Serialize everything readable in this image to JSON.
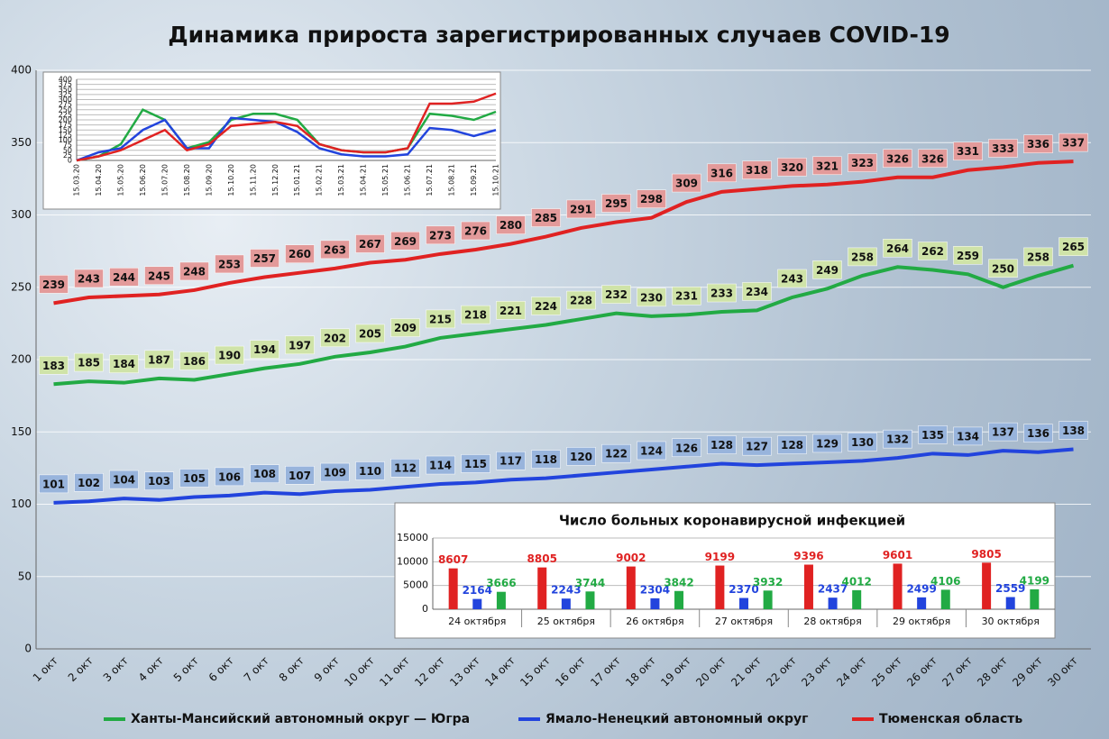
{
  "chart_data": [
    {
      "type": "line",
      "title": "Динамика прироста зарегистрированных случаев COVID-19",
      "categories": [
        "1 окт",
        "2 окт",
        "3 окт",
        "4 окт",
        "5 окт",
        "6 окт",
        "7 окт",
        "8 окт",
        "9 окт",
        "10 окт",
        "11 окт",
        "12 окт",
        "13 окт",
        "14 окт",
        "15 окт",
        "16 окт",
        "17 окт",
        "18 окт",
        "19 окт",
        "20 окт",
        "21 окт",
        "22 окт",
        "23 окт",
        "24 окт",
        "25 окт",
        "26 окт",
        "27 окт",
        "28 окт",
        "29 окт",
        "30 окт"
      ],
      "series": [
        {
          "name": "Ханты-Мансийский автономный округ — Югра",
          "color": "#22aa44",
          "label_fill": "#cfe3a8",
          "values": [
            183,
            185,
            184,
            187,
            186,
            190,
            194,
            197,
            202,
            205,
            209,
            215,
            218,
            221,
            224,
            228,
            232,
            230,
            231,
            233,
            234,
            243,
            249,
            258,
            264,
            262,
            259,
            250,
            258,
            265
          ]
        },
        {
          "name": "Ямало-Ненецкий автономный округ",
          "color": "#2244dd",
          "label_fill": "#98b4dc",
          "values": [
            101,
            102,
            104,
            103,
            105,
            106,
            108,
            107,
            109,
            110,
            112,
            114,
            115,
            117,
            118,
            120,
            122,
            124,
            126,
            128,
            127,
            128,
            129,
            130,
            132,
            135,
            134,
            137,
            136,
            138
          ]
        },
        {
          "name": "Тюменская область",
          "color": "#e02222",
          "label_fill": "#e39a9a",
          "values": [
            239,
            243,
            244,
            245,
            248,
            253,
            257,
            260,
            263,
            267,
            269,
            273,
            276,
            280,
            285,
            291,
            295,
            298,
            309,
            316,
            318,
            320,
            321,
            323,
            326,
            326,
            331,
            333,
            336,
            337
          ]
        }
      ],
      "ylim": [
        0,
        400
      ],
      "yticks": [
        0,
        50,
        100,
        150,
        200,
        250,
        300,
        350,
        400
      ],
      "grid": true,
      "data_labels": true,
      "legend": "bottom"
    },
    {
      "type": "line",
      "categories": [
        "15.03.20",
        "15.04.20",
        "15.05.20",
        "15.06.20",
        "15.07.20",
        "15.08.20",
        "15.09.20",
        "15.10.20",
        "15.11.20",
        "15.12.20",
        "15.01.21",
        "15.02.21",
        "15.03.21",
        "15.04.21",
        "15.05.21",
        "15.06.21",
        "15.07.21",
        "15.08.21",
        "15.09.21",
        "15.10.21"
      ],
      "series": [
        {
          "color": "#22aa44",
          "values": [
            0,
            20,
            80,
            250,
            200,
            60,
            90,
            200,
            230,
            230,
            200,
            80,
            50,
            40,
            40,
            60,
            230,
            220,
            200,
            240
          ]
        },
        {
          "color": "#2244dd",
          "values": [
            0,
            40,
            60,
            150,
            200,
            60,
            60,
            210,
            200,
            190,
            140,
            60,
            30,
            20,
            20,
            30,
            160,
            150,
            120,
            150
          ]
        },
        {
          "color": "#e02222",
          "values": [
            0,
            20,
            50,
            100,
            150,
            50,
            80,
            170,
            180,
            190,
            170,
            80,
            50,
            40,
            40,
            60,
            280,
            280,
            290,
            330
          ]
        }
      ],
      "ylim": [
        0,
        400
      ],
      "yticks": [
        0,
        25,
        50,
        75,
        100,
        125,
        150,
        175,
        200,
        225,
        250,
        275,
        300,
        325,
        350,
        375,
        400
      ],
      "grid": true
    },
    {
      "type": "bar",
      "title": "Число больных коронавирусной инфекцией",
      "categories": [
        "24 октября",
        "25 октября",
        "26 октября",
        "27 октября",
        "28 октября",
        "29 октября",
        "30 октября"
      ],
      "series": [
        {
          "color": "#e02222",
          "values": [
            8607,
            8805,
            9002,
            9199,
            9396,
            9601,
            9805
          ]
        },
        {
          "color": "#2244dd",
          "values": [
            2164,
            2243,
            2304,
            2370,
            2437,
            2499,
            2559
          ]
        },
        {
          "color": "#22aa44",
          "values": [
            3666,
            3744,
            3842,
            3932,
            4012,
            4106,
            4199
          ]
        }
      ],
      "ylim": [
        0,
        15000
      ],
      "yticks": [
        0,
        5000,
        10000,
        15000
      ],
      "grid": true,
      "data_labels": true
    }
  ]
}
